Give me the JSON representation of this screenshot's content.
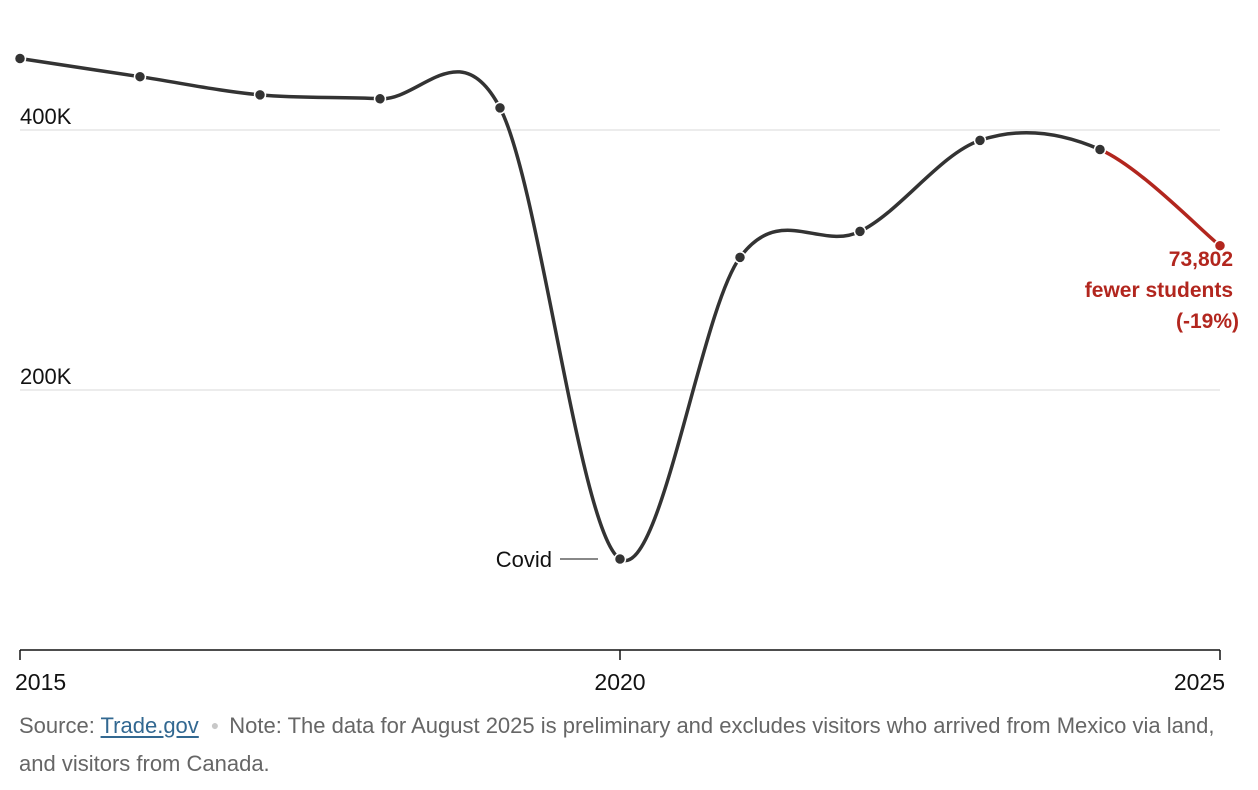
{
  "chart_data": {
    "type": "line",
    "x": [
      2015,
      2016,
      2017,
      2018,
      2019,
      2020,
      2021,
      2022,
      2023,
      2024,
      2025
    ],
    "values": [
      455000,
      441000,
      427000,
      424000,
      417000,
      70000,
      302000,
      322000,
      392000,
      385000,
      311000
    ],
    "highlight_from_index": 9,
    "ylim": [
      0,
      500000
    ],
    "y_ticks": [
      {
        "value": 400000,
        "label": "400K"
      },
      {
        "value": 200000,
        "label": "200K"
      }
    ],
    "x_ticks": [
      {
        "value": 2015,
        "label": "2015"
      },
      {
        "value": 2020,
        "label": "2020"
      },
      {
        "value": 2025,
        "label": "2025"
      }
    ],
    "annotations": {
      "covid": {
        "x": 2020,
        "label": "Covid"
      },
      "decline": {
        "x": 2025,
        "lines": [
          "73,802",
          "fewer students",
          "(-19%)"
        ]
      }
    },
    "grid": true,
    "colors": {
      "line": "#333333",
      "highlight": "#b2261e",
      "grid": "#d9d9d9",
      "axis": "#121212"
    }
  },
  "footer": {
    "source_label": "Source:",
    "source_link": "Trade.gov",
    "note": "Note: The data for August 2025 is preliminary and excludes visitors who arrived from Mexico via land, and visitors from Canada."
  }
}
